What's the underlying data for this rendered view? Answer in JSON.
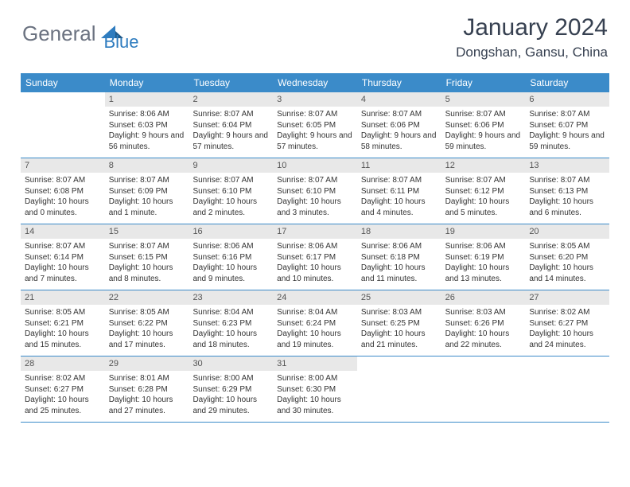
{
  "logo": {
    "general": "General",
    "blue": "Blue"
  },
  "title": "January 2024",
  "location": "Dongshan, Gansu, China",
  "weekdays": [
    "Sunday",
    "Monday",
    "Tuesday",
    "Wednesday",
    "Thursday",
    "Friday",
    "Saturday"
  ],
  "colors": {
    "header_bg": "#3b8bc9",
    "daynum_bg": "#e8e8e8",
    "text": "#333333",
    "logo_gray": "#6b7280",
    "logo_blue": "#2e7cbf"
  },
  "weeks": [
    [
      {
        "n": "",
        "sr": "",
        "ss": "",
        "dl": ""
      },
      {
        "n": "1",
        "sr": "Sunrise: 8:06 AM",
        "ss": "Sunset: 6:03 PM",
        "dl": "Daylight: 9 hours and 56 minutes."
      },
      {
        "n": "2",
        "sr": "Sunrise: 8:07 AM",
        "ss": "Sunset: 6:04 PM",
        "dl": "Daylight: 9 hours and 57 minutes."
      },
      {
        "n": "3",
        "sr": "Sunrise: 8:07 AM",
        "ss": "Sunset: 6:05 PM",
        "dl": "Daylight: 9 hours and 57 minutes."
      },
      {
        "n": "4",
        "sr": "Sunrise: 8:07 AM",
        "ss": "Sunset: 6:06 PM",
        "dl": "Daylight: 9 hours and 58 minutes."
      },
      {
        "n": "5",
        "sr": "Sunrise: 8:07 AM",
        "ss": "Sunset: 6:06 PM",
        "dl": "Daylight: 9 hours and 59 minutes."
      },
      {
        "n": "6",
        "sr": "Sunrise: 8:07 AM",
        "ss": "Sunset: 6:07 PM",
        "dl": "Daylight: 9 hours and 59 minutes."
      }
    ],
    [
      {
        "n": "7",
        "sr": "Sunrise: 8:07 AM",
        "ss": "Sunset: 6:08 PM",
        "dl": "Daylight: 10 hours and 0 minutes."
      },
      {
        "n": "8",
        "sr": "Sunrise: 8:07 AM",
        "ss": "Sunset: 6:09 PM",
        "dl": "Daylight: 10 hours and 1 minute."
      },
      {
        "n": "9",
        "sr": "Sunrise: 8:07 AM",
        "ss": "Sunset: 6:10 PM",
        "dl": "Daylight: 10 hours and 2 minutes."
      },
      {
        "n": "10",
        "sr": "Sunrise: 8:07 AM",
        "ss": "Sunset: 6:10 PM",
        "dl": "Daylight: 10 hours and 3 minutes."
      },
      {
        "n": "11",
        "sr": "Sunrise: 8:07 AM",
        "ss": "Sunset: 6:11 PM",
        "dl": "Daylight: 10 hours and 4 minutes."
      },
      {
        "n": "12",
        "sr": "Sunrise: 8:07 AM",
        "ss": "Sunset: 6:12 PM",
        "dl": "Daylight: 10 hours and 5 minutes."
      },
      {
        "n": "13",
        "sr": "Sunrise: 8:07 AM",
        "ss": "Sunset: 6:13 PM",
        "dl": "Daylight: 10 hours and 6 minutes."
      }
    ],
    [
      {
        "n": "14",
        "sr": "Sunrise: 8:07 AM",
        "ss": "Sunset: 6:14 PM",
        "dl": "Daylight: 10 hours and 7 minutes."
      },
      {
        "n": "15",
        "sr": "Sunrise: 8:07 AM",
        "ss": "Sunset: 6:15 PM",
        "dl": "Daylight: 10 hours and 8 minutes."
      },
      {
        "n": "16",
        "sr": "Sunrise: 8:06 AM",
        "ss": "Sunset: 6:16 PM",
        "dl": "Daylight: 10 hours and 9 minutes."
      },
      {
        "n": "17",
        "sr": "Sunrise: 8:06 AM",
        "ss": "Sunset: 6:17 PM",
        "dl": "Daylight: 10 hours and 10 minutes."
      },
      {
        "n": "18",
        "sr": "Sunrise: 8:06 AM",
        "ss": "Sunset: 6:18 PM",
        "dl": "Daylight: 10 hours and 11 minutes."
      },
      {
        "n": "19",
        "sr": "Sunrise: 8:06 AM",
        "ss": "Sunset: 6:19 PM",
        "dl": "Daylight: 10 hours and 13 minutes."
      },
      {
        "n": "20",
        "sr": "Sunrise: 8:05 AM",
        "ss": "Sunset: 6:20 PM",
        "dl": "Daylight: 10 hours and 14 minutes."
      }
    ],
    [
      {
        "n": "21",
        "sr": "Sunrise: 8:05 AM",
        "ss": "Sunset: 6:21 PM",
        "dl": "Daylight: 10 hours and 15 minutes."
      },
      {
        "n": "22",
        "sr": "Sunrise: 8:05 AM",
        "ss": "Sunset: 6:22 PM",
        "dl": "Daylight: 10 hours and 17 minutes."
      },
      {
        "n": "23",
        "sr": "Sunrise: 8:04 AM",
        "ss": "Sunset: 6:23 PM",
        "dl": "Daylight: 10 hours and 18 minutes."
      },
      {
        "n": "24",
        "sr": "Sunrise: 8:04 AM",
        "ss": "Sunset: 6:24 PM",
        "dl": "Daylight: 10 hours and 19 minutes."
      },
      {
        "n": "25",
        "sr": "Sunrise: 8:03 AM",
        "ss": "Sunset: 6:25 PM",
        "dl": "Daylight: 10 hours and 21 minutes."
      },
      {
        "n": "26",
        "sr": "Sunrise: 8:03 AM",
        "ss": "Sunset: 6:26 PM",
        "dl": "Daylight: 10 hours and 22 minutes."
      },
      {
        "n": "27",
        "sr": "Sunrise: 8:02 AM",
        "ss": "Sunset: 6:27 PM",
        "dl": "Daylight: 10 hours and 24 minutes."
      }
    ],
    [
      {
        "n": "28",
        "sr": "Sunrise: 8:02 AM",
        "ss": "Sunset: 6:27 PM",
        "dl": "Daylight: 10 hours and 25 minutes."
      },
      {
        "n": "29",
        "sr": "Sunrise: 8:01 AM",
        "ss": "Sunset: 6:28 PM",
        "dl": "Daylight: 10 hours and 27 minutes."
      },
      {
        "n": "30",
        "sr": "Sunrise: 8:00 AM",
        "ss": "Sunset: 6:29 PM",
        "dl": "Daylight: 10 hours and 29 minutes."
      },
      {
        "n": "31",
        "sr": "Sunrise: 8:00 AM",
        "ss": "Sunset: 6:30 PM",
        "dl": "Daylight: 10 hours and 30 minutes."
      },
      {
        "n": "",
        "sr": "",
        "ss": "",
        "dl": ""
      },
      {
        "n": "",
        "sr": "",
        "ss": "",
        "dl": ""
      },
      {
        "n": "",
        "sr": "",
        "ss": "",
        "dl": ""
      }
    ]
  ]
}
